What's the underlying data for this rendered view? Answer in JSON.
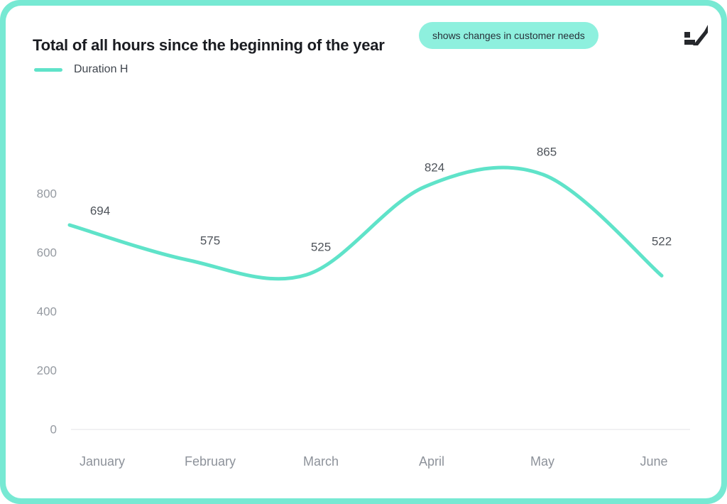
{
  "header": {
    "title": "Total of all hours since the beginning of the year",
    "badge": "shows changes in customer needs"
  },
  "legend": {
    "items": [
      {
        "label": "Duration H",
        "color": "#5fe3c9"
      }
    ]
  },
  "chart_data": {
    "type": "line",
    "title": "Total of all hours since the beginning of the year",
    "categories": [
      "January",
      "February",
      "March",
      "April",
      "May",
      "June"
    ],
    "series": [
      {
        "name": "Duration H",
        "values": [
          694,
          575,
          525,
          824,
          865,
          522
        ]
      }
    ],
    "yticks": [
      0,
      200,
      400,
      600,
      800
    ],
    "ylim": [
      0,
      900
    ],
    "grid": "baseline-only",
    "smooth": true,
    "data_labels": true,
    "legend_position": "top-left"
  },
  "colors": {
    "frame": "#77e9d3",
    "card": "#ffffff",
    "line": "#5fe3c9",
    "badge_bg": "#8ef0de",
    "title_text": "#1b1d22",
    "axis_tick_text": "#959aa1",
    "month_text": "#8d929a",
    "data_label_text": "#4f545b",
    "baseline": "#f1f1f3",
    "logo": "#26282c"
  }
}
